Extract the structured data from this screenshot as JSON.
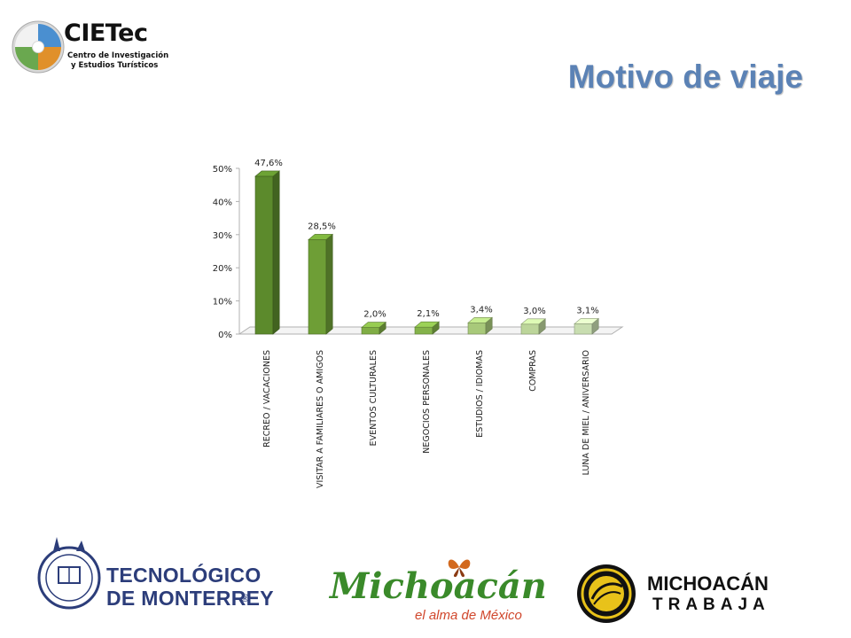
{
  "header": {
    "logo_name": "CIETec",
    "logo_subtitle_1": "Centro de Investigación",
    "logo_subtitle_2": "y Estudios Turísticos",
    "title": "Motivo de viaje"
  },
  "chart_data": {
    "type": "bar",
    "title": "",
    "xlabel": "",
    "ylabel": "",
    "ylim": [
      0,
      50
    ],
    "yticks": [
      0,
      10,
      20,
      30,
      40,
      50
    ],
    "ytick_labels": [
      "0%",
      "10%",
      "20%",
      "30%",
      "40%",
      "50%"
    ],
    "categories": [
      "RECREO / VACACIONES",
      "VISITAR A FAMILIARES O AMIGOS",
      "EVENTOS CULTURALES",
      "NEGOCIOS PERSONALES",
      "ESTUDIOS / IDIOMAS",
      "COMPRAS",
      "LUNA DE MIEL / ANIVERSARIO"
    ],
    "values": [
      47.6,
      28.5,
      2.0,
      2.1,
      3.4,
      3.0,
      3.1
    ],
    "data_labels": [
      "47,6%",
      "28,5%",
      "2,0%",
      "2,1%",
      "3,4%",
      "3,0%",
      "3,1%"
    ],
    "colors": [
      "#5c8a2c",
      "#6e9e36",
      "#80ad45",
      "#84b24a",
      "#a8c97a",
      "#bcd59a",
      "#c8ddb0"
    ],
    "grid": false,
    "legend": "none"
  },
  "footer": {
    "tec_line1": "TECNOLÓGICO",
    "tec_line2": "DE MONTERREY",
    "tec_mark": "®",
    "mich_name": "Michoacán",
    "mich_tagline": "el alma de México",
    "trabaja_line1": "MICHOACÁN",
    "trabaja_line2": "TRABAJA"
  }
}
